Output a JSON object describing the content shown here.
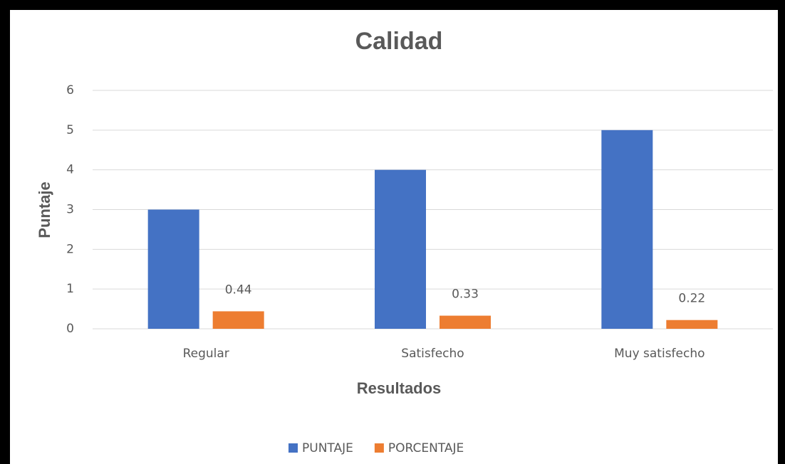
{
  "chart_data": {
    "type": "bar",
    "title": "Calidad",
    "x_label": "Resultados",
    "y_label": "Puntaje",
    "categories": [
      "Regular",
      "Satisfecho",
      "Muy satisfecho"
    ],
    "series": [
      {
        "name": "PUNTAJE",
        "color": "#4472c4",
        "values": [
          3,
          4,
          5
        ]
      },
      {
        "name": "PORCENTAJE",
        "color": "#ed7d31",
        "values": [
          0.44,
          0.33,
          0.22
        ],
        "data_labels": true
      }
    ],
    "ylim": [
      0,
      6
    ],
    "yticks": [
      0,
      1,
      2,
      3,
      4,
      5,
      6
    ],
    "grid": true,
    "legend": "bottom"
  }
}
